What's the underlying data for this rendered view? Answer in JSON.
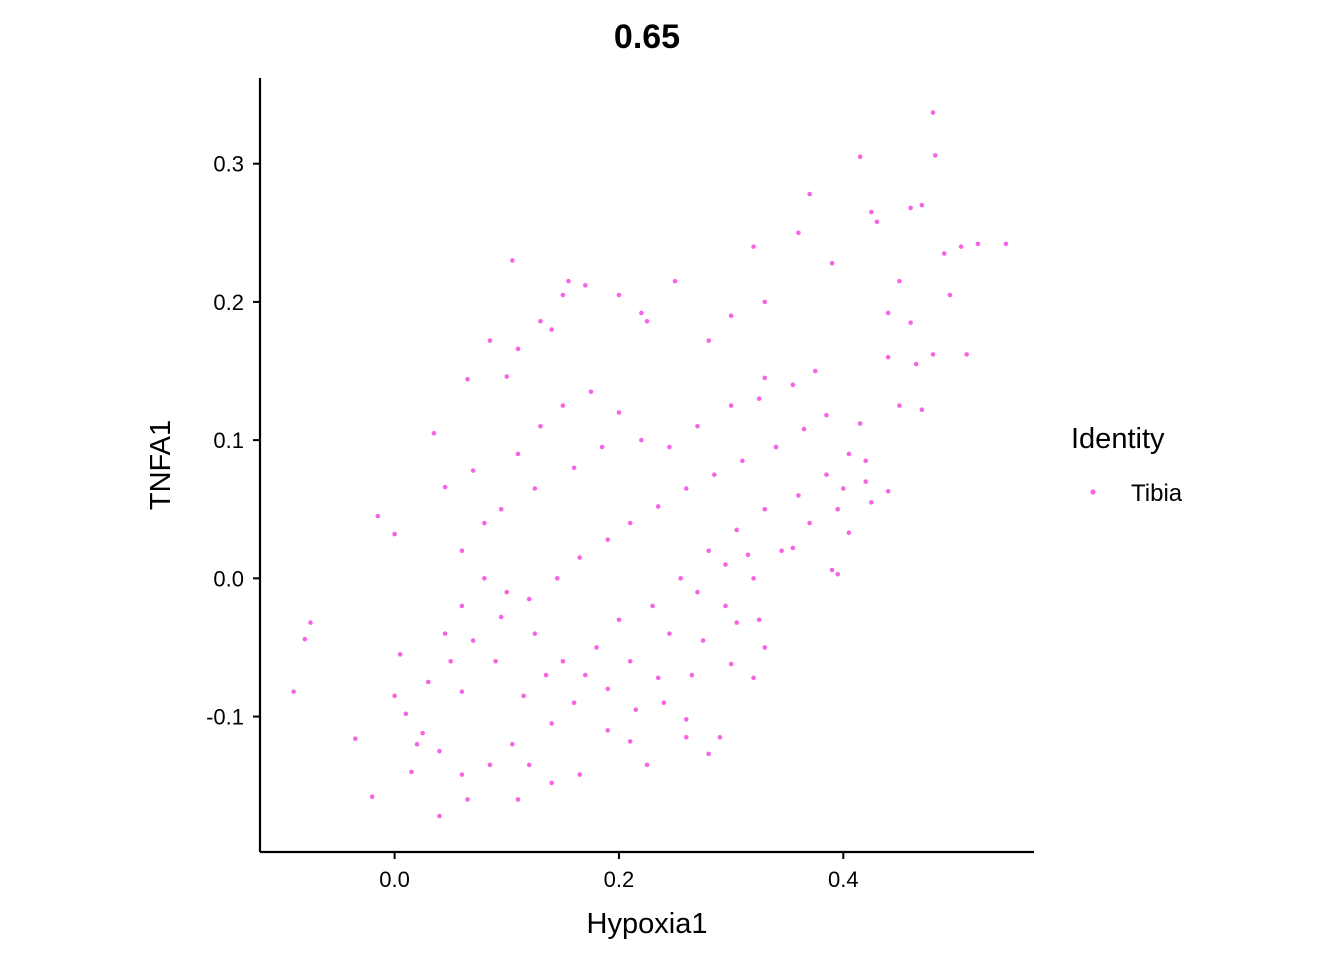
{
  "chart_data": {
    "type": "scatter",
    "title": "0.65",
    "xlabel": "Hypoxia1",
    "ylabel": "TNFA1",
    "xlim": [
      -0.12,
      0.57
    ],
    "ylim": [
      -0.198,
      0.362
    ],
    "xticks": [
      0.0,
      0.2,
      0.4
    ],
    "xtick_labels": [
      "0.0",
      "0.2",
      "0.4"
    ],
    "yticks": [
      -0.1,
      0.0,
      0.1,
      0.2,
      0.3
    ],
    "ytick_labels": [
      "-0.1",
      "0.0",
      "0.1",
      "0.2",
      "0.3"
    ],
    "grid": false,
    "legend": {
      "title": "Identity",
      "position": "right"
    },
    "series": [
      {
        "name": "Tibia",
        "color": "#F564E3",
        "points": [
          [
            -0.09,
            -0.082
          ],
          [
            -0.08,
            -0.044
          ],
          [
            -0.075,
            -0.032
          ],
          [
            -0.035,
            -0.116
          ],
          [
            -0.02,
            -0.158
          ],
          [
            -0.015,
            0.045
          ],
          [
            0.0,
            0.032
          ],
          [
            0.005,
            -0.055
          ],
          [
            0.015,
            -0.14
          ],
          [
            0.02,
            -0.12
          ],
          [
            0.035,
            0.105
          ],
          [
            0.04,
            -0.172
          ],
          [
            0.045,
            0.066
          ],
          [
            0.07,
            0.078
          ],
          [
            0.065,
            -0.16
          ],
          [
            0.1,
            0.146
          ],
          [
            0.105,
            0.23
          ],
          [
            0.13,
            0.186
          ],
          [
            0.14,
            0.18
          ],
          [
            0.155,
            0.215
          ],
          [
            0.17,
            0.212
          ],
          [
            0.2,
            0.205
          ],
          [
            0.22,
            0.192
          ],
          [
            0.225,
            0.186
          ],
          [
            0.25,
            0.215
          ],
          [
            0.21,
            -0.118
          ],
          [
            0.26,
            -0.102
          ],
          [
            0.29,
            -0.115
          ],
          [
            0.32,
            0.24
          ],
          [
            0.33,
            0.2
          ],
          [
            0.36,
            0.25
          ],
          [
            0.37,
            0.278
          ],
          [
            0.39,
            0.228
          ],
          [
            0.415,
            0.305
          ],
          [
            0.425,
            0.265
          ],
          [
            0.43,
            0.258
          ],
          [
            0.45,
            0.215
          ],
          [
            0.46,
            0.268
          ],
          [
            0.47,
            0.27
          ],
          [
            0.48,
            0.337
          ],
          [
            0.482,
            0.306
          ],
          [
            0.49,
            0.235
          ],
          [
            0.505,
            0.24
          ],
          [
            0.52,
            0.242
          ],
          [
            0.545,
            0.242
          ],
          [
            0.495,
            0.205
          ],
          [
            0.51,
            0.162
          ],
          [
            0.48,
            0.162
          ],
          [
            0.47,
            0.122
          ],
          [
            0.44,
            0.16
          ],
          [
            0.45,
            0.125
          ],
          [
            0.44,
            0.063
          ],
          [
            0.425,
            0.055
          ],
          [
            0.405,
            0.033
          ],
          [
            0.395,
            0.003
          ],
          [
            0.39,
            0.006
          ],
          [
            0.325,
            -0.03
          ],
          [
            0.33,
            -0.05
          ],
          [
            0.305,
            -0.032
          ],
          [
            0.19,
            -0.08
          ],
          [
            0.12,
            -0.135
          ],
          [
            0.11,
            -0.16
          ],
          [
            0.14,
            -0.148
          ],
          [
            0.165,
            -0.142
          ],
          [
            0.225,
            -0.135
          ],
          [
            0.26,
            -0.115
          ],
          [
            0.28,
            -0.127
          ],
          [
            0.3,
            -0.062
          ],
          [
            0.32,
            -0.072
          ],
          [
            0.33,
            0.145
          ],
          [
            0.3,
            0.19
          ],
          [
            0.28,
            0.172
          ],
          [
            0.06,
            -0.082
          ],
          [
            0.15,
            0.205
          ],
          [
            0.11,
            0.166
          ],
          [
            0.085,
            0.172
          ],
          [
            0.065,
            0.144
          ],
          [
            0.46,
            0.185
          ],
          [
            0.44,
            0.192
          ],
          [
            0.465,
            0.155
          ],
          [
            0.42,
            0.085
          ],
          [
            0.415,
            0.112
          ],
          [
            0.4,
            0.065
          ],
          [
            0.355,
            0.022
          ],
          [
            0.315,
            0.017
          ],
          [
            0.295,
            0.01
          ],
          [
            0.27,
            -0.01
          ],
          [
            0.245,
            -0.04
          ],
          [
            0.235,
            -0.072
          ],
          [
            0.215,
            -0.095
          ],
          [
            0.17,
            -0.07
          ],
          [
            0.14,
            -0.105
          ],
          [
            0.105,
            -0.12
          ],
          [
            0.085,
            -0.135
          ],
          [
            0.06,
            -0.142
          ],
          [
            0.04,
            -0.125
          ],
          [
            0.025,
            -0.112
          ],
          [
            0.01,
            -0.098
          ],
          [
            0.0,
            -0.085
          ],
          [
            0.03,
            -0.075
          ],
          [
            0.05,
            -0.06
          ],
          [
            0.07,
            -0.045
          ],
          [
            0.095,
            -0.028
          ],
          [
            0.12,
            -0.015
          ],
          [
            0.145,
            0.0
          ],
          [
            0.165,
            0.015
          ],
          [
            0.19,
            0.028
          ],
          [
            0.21,
            0.04
          ],
          [
            0.235,
            0.052
          ],
          [
            0.26,
            0.065
          ],
          [
            0.285,
            0.075
          ],
          [
            0.31,
            0.085
          ],
          [
            0.34,
            0.095
          ],
          [
            0.365,
            0.108
          ],
          [
            0.385,
            0.118
          ],
          [
            0.095,
            0.05
          ],
          [
            0.11,
            0.09
          ],
          [
            0.13,
            0.11
          ],
          [
            0.15,
            0.125
          ],
          [
            0.175,
            0.135
          ],
          [
            0.2,
            0.12
          ],
          [
            0.22,
            0.1
          ],
          [
            0.245,
            0.095
          ],
          [
            0.27,
            0.11
          ],
          [
            0.3,
            0.125
          ],
          [
            0.325,
            0.13
          ],
          [
            0.355,
            0.14
          ],
          [
            0.375,
            0.15
          ],
          [
            0.06,
            0.02
          ],
          [
            0.08,
            0.0
          ],
          [
            0.1,
            -0.01
          ],
          [
            0.125,
            -0.04
          ],
          [
            0.15,
            -0.06
          ],
          [
            0.18,
            -0.05
          ],
          [
            0.2,
            -0.03
          ],
          [
            0.23,
            -0.02
          ],
          [
            0.255,
            0.0
          ],
          [
            0.28,
            0.02
          ],
          [
            0.305,
            0.035
          ],
          [
            0.33,
            0.05
          ],
          [
            0.36,
            0.06
          ],
          [
            0.385,
            0.075
          ],
          [
            0.405,
            0.09
          ],
          [
            0.08,
            0.04
          ],
          [
            0.125,
            0.065
          ],
          [
            0.16,
            0.08
          ],
          [
            0.185,
            0.095
          ],
          [
            0.06,
            -0.02
          ],
          [
            0.045,
            -0.04
          ],
          [
            0.09,
            -0.06
          ],
          [
            0.115,
            -0.085
          ],
          [
            0.135,
            -0.07
          ],
          [
            0.16,
            -0.09
          ],
          [
            0.19,
            -0.11
          ],
          [
            0.21,
            -0.06
          ],
          [
            0.24,
            -0.09
          ],
          [
            0.265,
            -0.07
          ],
          [
            0.275,
            -0.045
          ],
          [
            0.295,
            -0.02
          ],
          [
            0.32,
            0.0
          ],
          [
            0.345,
            0.02
          ],
          [
            0.37,
            0.04
          ],
          [
            0.395,
            0.05
          ],
          [
            0.42,
            0.07
          ]
        ]
      }
    ]
  }
}
